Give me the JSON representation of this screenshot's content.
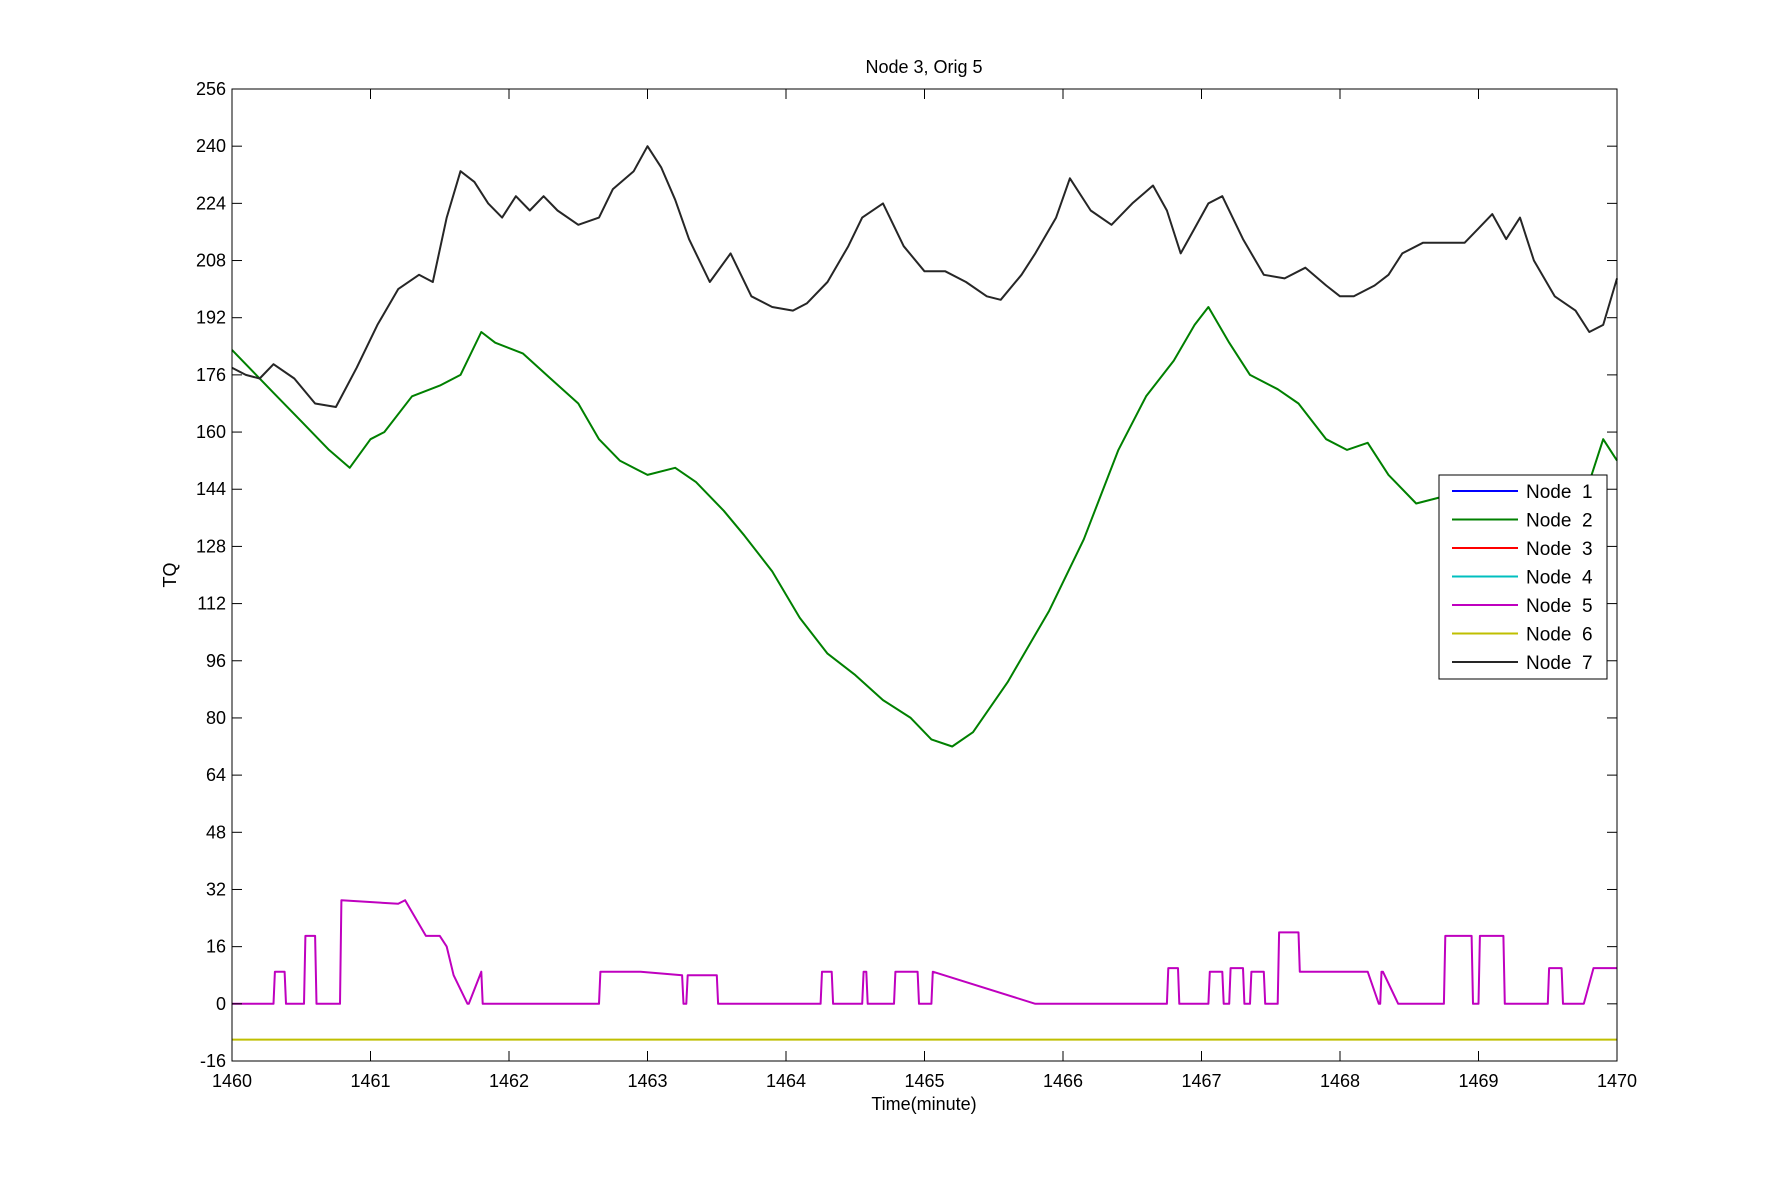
{
  "chart_data": {
    "type": "line",
    "title": "Node 3, Orig 5",
    "xlabel": "Time(minute)",
    "ylabel": "TQ",
    "xlim": [
      1460,
      1470
    ],
    "ylim": [
      -16,
      256
    ],
    "xticks": [
      "1460",
      "1461",
      "1462",
      "1463",
      "1464",
      "1465",
      "1466",
      "1467",
      "1468",
      "1469",
      "1470"
    ],
    "yticks": [
      "-16",
      "0",
      "16",
      "32",
      "48",
      "64",
      "80",
      "96",
      "112",
      "128",
      "144",
      "160",
      "176",
      "192",
      "208",
      "224",
      "240",
      "256"
    ],
    "grid": false,
    "legend_position": "right",
    "series": [
      {
        "name": "Node  1",
        "color": "#0000ff",
        "x": [],
        "y": []
      },
      {
        "name": "Node  2",
        "color": "#008000",
        "x": [
          1460.0,
          1460.1,
          1460.3,
          1460.5,
          1460.7,
          1460.85,
          1461.0,
          1461.1,
          1461.3,
          1461.5,
          1461.65,
          1461.8,
          1461.9,
          1462.1,
          1462.3,
          1462.5,
          1462.65,
          1462.8,
          1463.0,
          1463.2,
          1463.35,
          1463.55,
          1463.7,
          1463.9,
          1464.1,
          1464.3,
          1464.5,
          1464.7,
          1464.9,
          1465.05,
          1465.2,
          1465.35,
          1465.6,
          1465.9,
          1466.15,
          1466.4,
          1466.6,
          1466.8,
          1466.95,
          1467.05,
          1467.2,
          1467.35,
          1467.55,
          1467.7,
          1467.9,
          1468.05,
          1468.2,
          1468.35,
          1468.55,
          1468.75,
          1469.0,
          1469.3,
          1469.6,
          1469.8,
          1469.9,
          1470.0
        ],
        "y": [
          183,
          179,
          171,
          163,
          155,
          150,
          158,
          160,
          170,
          173,
          176,
          188,
          185,
          182,
          175,
          168,
          158,
          152,
          148,
          150,
          146,
          138,
          131,
          121,
          108,
          98,
          92,
          85,
          80,
          74,
          72,
          76,
          90,
          110,
          130,
          155,
          170,
          180,
          190,
          195,
          185,
          176,
          172,
          168,
          158,
          155,
          157,
          148,
          140,
          142,
          145,
          143,
          141,
          146,
          158,
          152
        ]
      },
      {
        "name": "Node  3",
        "color": "#ff0000",
        "x": [],
        "y": []
      },
      {
        "name": "Node  4",
        "color": "#00bfbf",
        "x": [],
        "y": []
      },
      {
        "name": "Node  5",
        "color": "#bf00bf",
        "x": [
          1460.0,
          1460.3,
          1460.31,
          1460.38,
          1460.39,
          1460.52,
          1460.53,
          1460.6,
          1460.61,
          1460.78,
          1460.79,
          1461.2,
          1461.25,
          1461.4,
          1461.5,
          1461.55,
          1461.6,
          1461.7,
          1461.71,
          1461.8,
          1461.81,
          1462.65,
          1462.66,
          1462.95,
          1463.25,
          1463.26,
          1463.28,
          1463.29,
          1463.5,
          1463.51,
          1464.25,
          1464.26,
          1464.33,
          1464.34,
          1464.55,
          1464.56,
          1464.58,
          1464.59,
          1464.78,
          1464.79,
          1464.95,
          1464.96,
          1465.05,
          1465.06,
          1465.8,
          1466.75,
          1466.76,
          1466.83,
          1466.84,
          1467.05,
          1467.06,
          1467.15,
          1467.16,
          1467.2,
          1467.21,
          1467.3,
          1467.31,
          1467.35,
          1467.36,
          1467.45,
          1467.46,
          1467.55,
          1467.56,
          1467.7,
          1467.71,
          1467.9,
          1468.2,
          1468.28,
          1468.29,
          1468.3,
          1468.31,
          1468.42,
          1468.43,
          1468.75,
          1468.76,
          1468.95,
          1468.96,
          1469.0,
          1469.01,
          1469.18,
          1469.19,
          1469.5,
          1469.51,
          1469.6,
          1469.61,
          1469.75,
          1469.76,
          1469.83,
          1469.84,
          1470.0
        ],
        "y": [
          0,
          0,
          9,
          9,
          0,
          0,
          19,
          19,
          0,
          0,
          29,
          28,
          29,
          19,
          19,
          16,
          8,
          0,
          0,
          9,
          0,
          0,
          9,
          9,
          8,
          0,
          0,
          8,
          8,
          0,
          0,
          9,
          9,
          0,
          0,
          9,
          9,
          0,
          0,
          9,
          9,
          0,
          0,
          9,
          0,
          0,
          10,
          10,
          0,
          0,
          9,
          9,
          0,
          0,
          10,
          10,
          0,
          0,
          9,
          9,
          0,
          0,
          20,
          20,
          9,
          9,
          9,
          0,
          0,
          9,
          9,
          0,
          0,
          0,
          19,
          19,
          0,
          0,
          19,
          19,
          0,
          0,
          10,
          10,
          0,
          0,
          0,
          10,
          10,
          10
        ]
      },
      {
        "name": "Node  6",
        "color": "#bfbf00",
        "x": [
          1460,
          1470
        ],
        "y": [
          -10,
          -10
        ]
      },
      {
        "name": "Node  7",
        "color": "#262626",
        "x": [
          1460.0,
          1460.1,
          1460.2,
          1460.3,
          1460.45,
          1460.6,
          1460.75,
          1460.9,
          1461.05,
          1461.2,
          1461.35,
          1461.45,
          1461.55,
          1461.65,
          1461.75,
          1461.85,
          1461.95,
          1462.05,
          1462.15,
          1462.25,
          1462.35,
          1462.5,
          1462.65,
          1462.75,
          1462.9,
          1463.0,
          1463.1,
          1463.2,
          1463.3,
          1463.45,
          1463.6,
          1463.75,
          1463.9,
          1464.05,
          1464.15,
          1464.3,
          1464.45,
          1464.55,
          1464.7,
          1464.85,
          1465.0,
          1465.15,
          1465.3,
          1465.45,
          1465.55,
          1465.7,
          1465.8,
          1465.95,
          1466.05,
          1466.2,
          1466.35,
          1466.5,
          1466.65,
          1466.75,
          1466.85,
          1466.95,
          1467.05,
          1467.15,
          1467.3,
          1467.45,
          1467.6,
          1467.75,
          1467.9,
          1468.0,
          1468.1,
          1468.25,
          1468.35,
          1468.45,
          1468.6,
          1468.75,
          1468.9,
          1469.0,
          1469.1,
          1469.2,
          1469.3,
          1469.4,
          1469.55,
          1469.7,
          1469.8,
          1469.9,
          1470.0
        ],
        "y": [
          178,
          176,
          175,
          179,
          175,
          168,
          167,
          178,
          190,
          200,
          204,
          202,
          220,
          233,
          230,
          224,
          220,
          226,
          222,
          226,
          222,
          218,
          220,
          228,
          233,
          240,
          234,
          225,
          214,
          202,
          210,
          198,
          195,
          194,
          196,
          202,
          212,
          220,
          224,
          212,
          205,
          205,
          202,
          198,
          197,
          204,
          210,
          220,
          231,
          222,
          218,
          224,
          229,
          222,
          210,
          217,
          224,
          226,
          214,
          204,
          203,
          206,
          201,
          198,
          198,
          201,
          204,
          210,
          213,
          213,
          213,
          217,
          221,
          214,
          220,
          208,
          198,
          194,
          188,
          190,
          203
        ]
      }
    ]
  }
}
